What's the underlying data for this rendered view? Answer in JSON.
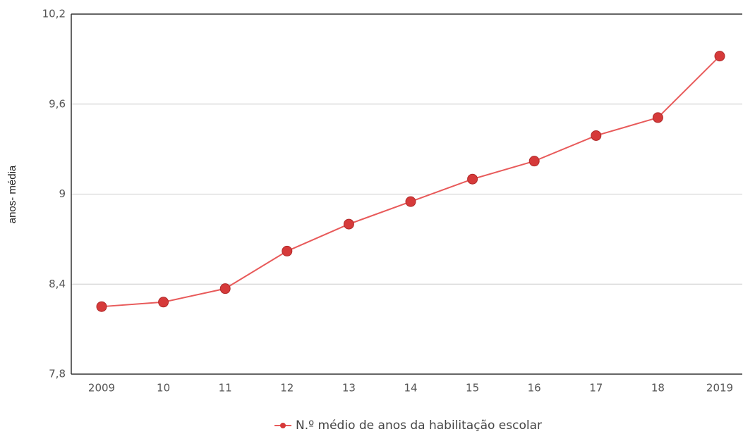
{
  "chart_data": {
    "type": "line",
    "y_label": "anos- média",
    "categories": [
      "2009",
      "10",
      "11",
      "12",
      "13",
      "14",
      "15",
      "16",
      "17",
      "18",
      "2019"
    ],
    "series": [
      {
        "name": "N.º médio de anos da habilitação escolar",
        "color": "#e85a5a",
        "marker_color": "#d63a3a",
        "values": [
          8.25,
          8.28,
          8.37,
          8.62,
          8.8,
          8.95,
          9.1,
          9.22,
          9.39,
          9.51,
          9.92
        ]
      }
    ],
    "ylim": [
      7.8,
      10.2
    ],
    "yticks": [
      {
        "value": 7.8,
        "label": "7,8"
      },
      {
        "value": 8.4,
        "label": "8,4"
      },
      9,
      {
        "value": 9.6,
        "label": "9,6"
      },
      {
        "value": 10.2,
        "label": "10,2"
      }
    ],
    "grid": true,
    "legend": "bottom"
  }
}
